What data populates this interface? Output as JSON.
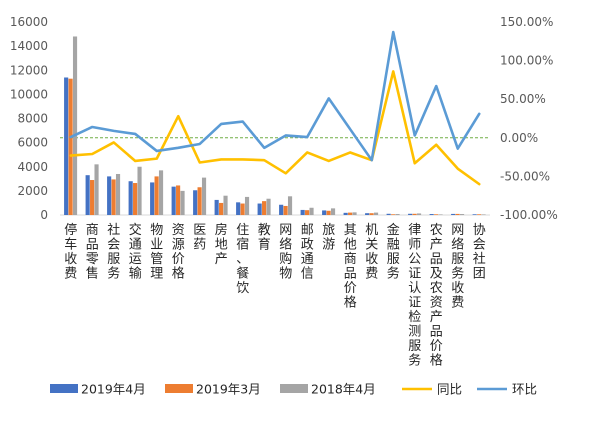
{
  "chart_data": {
    "type": "bar",
    "categories": [
      "停车收费",
      "商品零售",
      "社会服务",
      "交通运输",
      "物业管理",
      "资源价格",
      "医药",
      "房地产",
      "住宿、餐饮",
      "教育",
      "网络购物",
      "邮政通信",
      "旅游",
      "其他商品价格",
      "机关收费",
      "金融服务",
      "律师公证认证检测服务",
      "农产品及农资产品价格",
      "网络服务收费",
      "协会社团"
    ],
    "series": [
      {
        "name": "2019年4月",
        "axis": "left",
        "kind": "bar",
        "color": "#4472C4",
        "values": [
          11400,
          3300,
          3200,
          2800,
          2700,
          2350,
          2050,
          1250,
          1050,
          950,
          850,
          420,
          380,
          180,
          150,
          100,
          100,
          80,
          90,
          60
        ]
      },
      {
        "name": "2019年3月",
        "axis": "left",
        "kind": "bar",
        "color": "#ED7D31",
        "values": [
          11300,
          2900,
          2950,
          2650,
          3200,
          2450,
          2300,
          1000,
          950,
          1150,
          750,
          400,
          350,
          200,
          150,
          60,
          100,
          60,
          90,
          60
        ]
      },
      {
        "name": "2018年4月",
        "axis": "left",
        "kind": "bar",
        "color": "#A5A5A5",
        "values": [
          14800,
          4200,
          3400,
          4000,
          3700,
          2000,
          3100,
          1600,
          1500,
          1350,
          1550,
          600,
          550,
          220,
          200,
          80,
          130,
          50,
          80,
          50
        ]
      },
      {
        "name": "同比",
        "axis": "right",
        "kind": "line",
        "color": "#FFC000",
        "values": [
          -23,
          -21,
          -6,
          -30,
          -27,
          28,
          -32,
          -28,
          -28,
          -29,
          -46,
          -19,
          -30,
          -19,
          -29,
          86,
          -33,
          -9,
          -40,
          -60
        ]
      },
      {
        "name": "环比",
        "axis": "right",
        "kind": "line",
        "color": "#5B9BD5",
        "values": [
          1,
          14,
          9,
          5,
          -17,
          -13,
          -8,
          18,
          21,
          -13,
          3,
          1,
          51,
          11,
          -29,
          137,
          3,
          67,
          -14,
          31
        ]
      }
    ],
    "y_left": {
      "min": 0,
      "max": 16000,
      "step": 2000,
      "ticks": [
        "0",
        "2000",
        "4000",
        "6000",
        "8000",
        "10000",
        "12000",
        "14000",
        "16000"
      ]
    },
    "y_right": {
      "min": -100,
      "max": 150,
      "step": 50,
      "ticks": [
        "-100.00%",
        "-50.00%",
        "0.00%",
        "50.00%",
        "100.00%",
        "150.00%"
      ]
    },
    "grid": false,
    "legend_position": "bottom"
  }
}
